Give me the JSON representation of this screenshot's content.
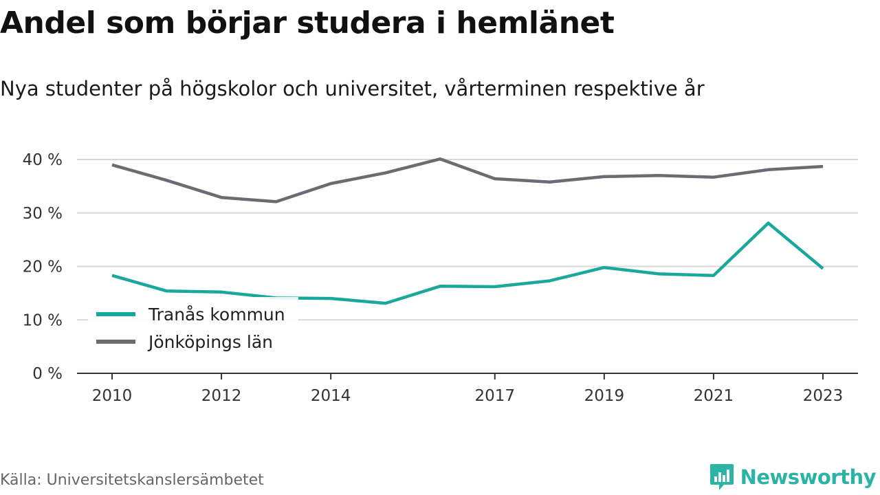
{
  "title": "Andel som börjar studera i hemlänet",
  "subtitle": "Nya studenter på högskolor och universitet, vårterminen respektive år",
  "source": "Källa: Universitetskanslersämbetet",
  "brand": {
    "name": "Newsworthy",
    "icon": "newsworthy-logo-icon",
    "color": "#2bb3a5"
  },
  "chart_data": {
    "type": "line",
    "x": [
      2010,
      2011,
      2012,
      2013,
      2014,
      2015,
      2016,
      2017,
      2018,
      2019,
      2020,
      2021,
      2022,
      2023
    ],
    "x_tick_labels": [
      "2010",
      "2012",
      "2014",
      "2017",
      "2019",
      "2021",
      "2023"
    ],
    "y_ticks": [
      0,
      10,
      20,
      30,
      40
    ],
    "y_tick_labels": [
      "0 %",
      "10 %",
      "20 %",
      "30 %",
      "40 %"
    ],
    "ylim": [
      0,
      40
    ],
    "grid": true,
    "legend_position": "lower-left",
    "series": [
      {
        "name": "Tranås kommun",
        "color": "#1aa89c",
        "values": [
          18.3,
          15.4,
          15.2,
          14.1,
          14.0,
          13.1,
          16.3,
          16.2,
          17.3,
          19.8,
          18.6,
          18.3,
          28.1,
          19.6
        ]
      },
      {
        "name": "Jönköpings län",
        "color": "#6b6b73",
        "values": [
          39.0,
          36.1,
          32.9,
          32.1,
          35.5,
          37.5,
          40.1,
          36.4,
          35.8,
          36.8,
          37.0,
          36.7,
          38.1,
          38.7
        ]
      }
    ]
  }
}
